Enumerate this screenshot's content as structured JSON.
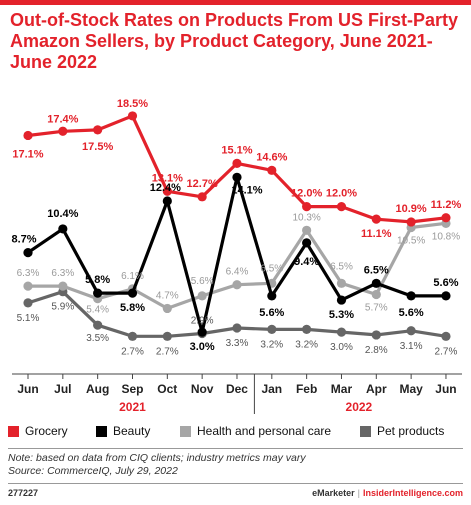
{
  "chart_data": {
    "type": "line",
    "title": "Out-of-Stock Rates on Products From US First-Party Amazon Sellers, by Product Category, June 2021-June 2022",
    "categories": [
      "Jun",
      "Jul",
      "Aug",
      "Sep",
      "Oct",
      "Nov",
      "Dec",
      "Jan",
      "Feb",
      "Mar",
      "Apr",
      "May",
      "Jun"
    ],
    "year_labels": [
      "2021",
      "2022"
    ],
    "series": [
      {
        "name": "Grocery",
        "color": "#e3222b",
        "values": [
          17.1,
          17.4,
          17.5,
          18.5,
          13.1,
          12.7,
          15.1,
          14.6,
          12.0,
          12.0,
          11.1,
          10.9,
          11.2
        ],
        "labels": [
          "17.1%",
          "17.4%",
          "17.5%",
          "18.5%",
          "13.1%",
          "12.7%",
          "15.1%",
          "14.6%",
          "12.0%",
          "12.0%",
          "11.1%",
          "10.9%",
          "11.2%"
        ]
      },
      {
        "name": "Beauty",
        "color": "#000000",
        "values": [
          8.7,
          10.4,
          5.8,
          5.8,
          12.4,
          3.0,
          14.1,
          5.6,
          9.4,
          5.3,
          6.5,
          5.6,
          5.6
        ],
        "labels": [
          "8.7%",
          "10.4%",
          "5.8%",
          "5.8%",
          "12.4%",
          "3.0%",
          "14.1%",
          "5.6%",
          "9.4%",
          "5.3%",
          "6.5%",
          "5.6%",
          "5.6%"
        ]
      },
      {
        "name": "Health and personal care",
        "color": "#a6a6a6",
        "values": [
          6.3,
          6.3,
          5.4,
          6.1,
          4.7,
          5.6,
          6.4,
          6.5,
          10.3,
          6.5,
          5.7,
          10.5,
          10.8
        ],
        "labels": [
          "6.3%",
          "6.3%",
          "5.4%",
          "6.1%",
          "4.7%",
          "5.6%",
          "6.4%",
          "6.5%",
          "10.3%",
          "6.5%",
          "5.7%",
          "10.5%",
          "10.8%"
        ]
      },
      {
        "name": "Pet products",
        "color": "#666666",
        "values": [
          5.1,
          5.9,
          3.5,
          2.7,
          2.7,
          2.9,
          3.3,
          3.2,
          3.2,
          3.0,
          2.8,
          3.1,
          2.7
        ],
        "labels": [
          "5.1%",
          "5.9%",
          "3.5%",
          "2.7%",
          "2.7%",
          "2.9%",
          "3.3%",
          "3.2%",
          "3.2%",
          "3.0%",
          "2.8%",
          "3.1%",
          "2.7%"
        ]
      }
    ],
    "xlabel": "",
    "ylabel": "",
    "ylim": [
      0,
      20
    ],
    "grid": false,
    "legend_placement": "bottom"
  },
  "note": "Note: based on data from CIQ clients; industry metrics may vary",
  "source": "Source: CommerceIQ, July 29, 2022",
  "footer": {
    "chart_id": "277227",
    "brand1": "eMarketer",
    "separator": "|",
    "brand2": "InsiderIntelligence.com"
  }
}
